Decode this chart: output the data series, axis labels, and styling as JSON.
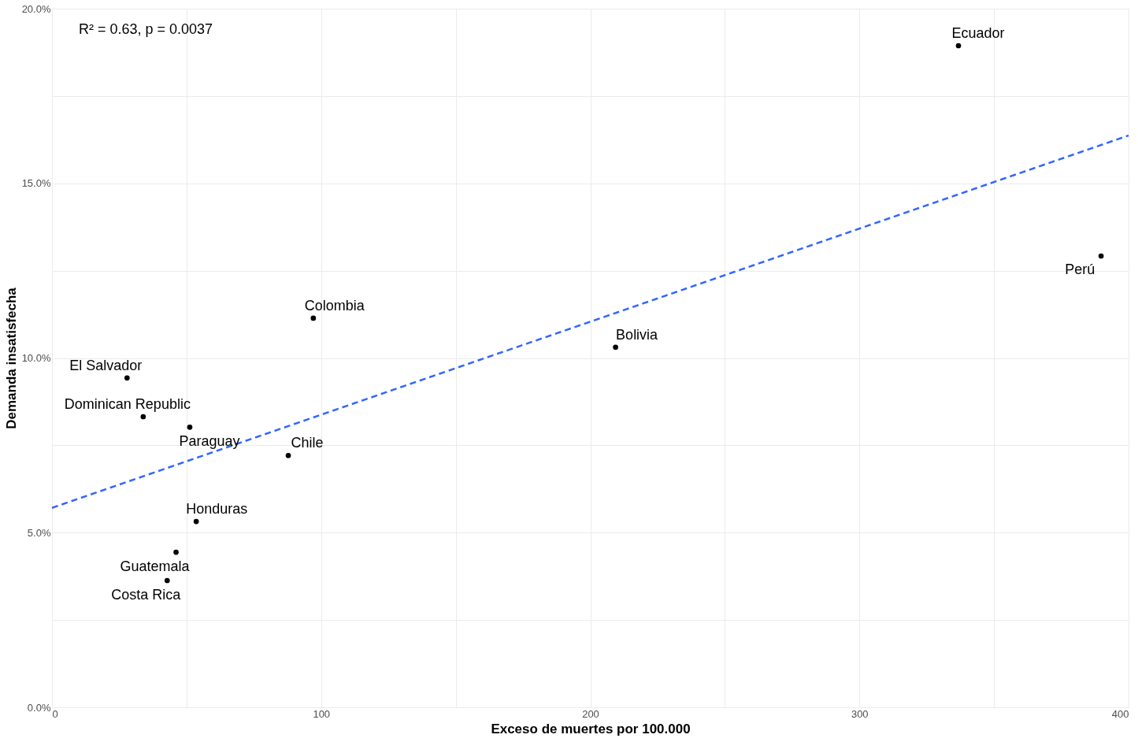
{
  "chart_data": {
    "type": "scatter",
    "xlabel": "Exceso de muertes por 100.000",
    "ylabel": "Demanda insatisfecha",
    "xlim": [
      0,
      400
    ],
    "ylim": [
      0,
      20
    ],
    "xticks": [
      0,
      {
        "value": 50,
        "label": null
      },
      100,
      {
        "value": 150,
        "label": null
      },
      200,
      {
        "value": 250,
        "label": null
      },
      300,
      {
        "value": 350,
        "label": null
      },
      400
    ],
    "yticks": [
      {
        "value": 0,
        "label": "0.0%"
      },
      {
        "value": 2.5,
        "label": null
      },
      {
        "value": 5,
        "label": "5.0%"
      },
      {
        "value": 7.5,
        "label": null
      },
      {
        "value": 10,
        "label": "10.0%"
      },
      {
        "value": 12.5,
        "label": null
      },
      {
        "value": 15,
        "label": "15.0%"
      },
      {
        "value": 17.5,
        "label": null
      },
      {
        "value": 20,
        "label": "20.0%"
      }
    ],
    "grid": true,
    "marker": "circle",
    "series": [
      {
        "color": "#000000",
        "x": [
          336.8,
          389.8,
          97.1,
          209.4,
          27.9,
          33.9,
          51.2,
          87.8,
          53.6,
          46.1,
          42.8
        ],
        "values": [
          18.94,
          12.92,
          11.14,
          10.31,
          9.43,
          8.32,
          8.02,
          7.21,
          5.32,
          4.44,
          3.63
        ]
      },
      {
        "type": "line",
        "color": "#3366ff",
        "line_style": "dashed",
        "marker": "none",
        "x": [
          0,
          400
        ],
        "values": [
          5.71,
          16.37
        ]
      }
    ],
    "annotations": [
      "R² = 0.63, p = 0.0037",
      {
        "text": "Ecuador",
        "x": 336.8,
        "y": 18.94
      },
      {
        "text": "Perú",
        "x": 389.8,
        "y": 12.92
      },
      {
        "text": "Colombia",
        "x": 97.1,
        "y": 11.14
      },
      {
        "text": "Bolivia",
        "x": 209.4,
        "y": 10.31
      },
      {
        "text": "El Salvador",
        "x": 27.9,
        "y": 9.43
      },
      {
        "text": "Dominican Republic",
        "x": 33.9,
        "y": 8.32
      },
      {
        "text": "Paraguay",
        "x": 51.2,
        "y": 8.02
      },
      {
        "text": "Chile",
        "x": 87.8,
        "y": 7.21
      },
      {
        "text": "Honduras",
        "x": 53.6,
        "y": 5.32
      },
      {
        "text": "Guatemala",
        "x": 46.1,
        "y": 4.44
      },
      {
        "text": "Costa Rica",
        "x": 42.8,
        "y": 3.63
      }
    ]
  }
}
